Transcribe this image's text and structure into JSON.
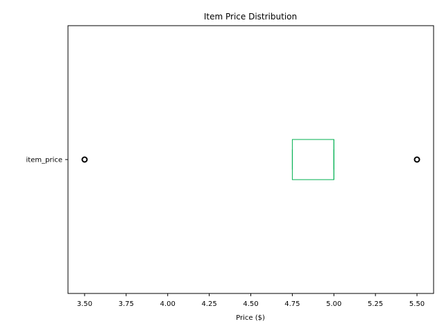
{
  "chart_data": {
    "type": "box",
    "orientation": "horizontal",
    "title": "Item Price Distribution",
    "xlabel": "Price ($)",
    "ylabel": "",
    "categories": [
      "item_price"
    ],
    "xlim": [
      3.4,
      5.6
    ],
    "xticks": [
      "3.50",
      "3.75",
      "4.00",
      "4.25",
      "4.50",
      "4.75",
      "5.00",
      "5.25",
      "5.50"
    ],
    "grid": false,
    "series": [
      {
        "category": "item_price",
        "q1": 4.75,
        "median": 5.0,
        "q3": 5.0,
        "whisker_low": 4.75,
        "whisker_high": 5.0,
        "outliers": [
          3.5,
          5.5
        ],
        "color": "#00b050"
      }
    ]
  }
}
